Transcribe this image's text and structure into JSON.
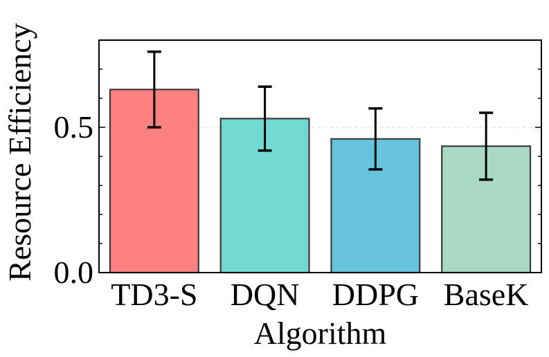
{
  "chart_data": {
    "type": "bar",
    "categories": [
      "TD3-S",
      "DQN",
      "DDPG",
      "BaseK"
    ],
    "series": [
      {
        "values": [
          0.63,
          0.53,
          0.46,
          0.435
        ],
        "error": [
          0.13,
          0.11,
          0.105,
          0.115
        ],
        "colors": [
          "#ff8080",
          "#72d8d2",
          "#67c3dc",
          "#a9d8c4"
        ]
      }
    ],
    "xlabel": "Algorithm",
    "ylabel": "Resource Efficiency",
    "ylim": [
      0,
      0.8
    ],
    "yticks": [
      0.0,
      0.5
    ],
    "ytick_labels": [
      "0.0",
      "0.5"
    ],
    "minor_ytick_step": 0.1,
    "grid": "y-dashed",
    "legend": "none"
  }
}
